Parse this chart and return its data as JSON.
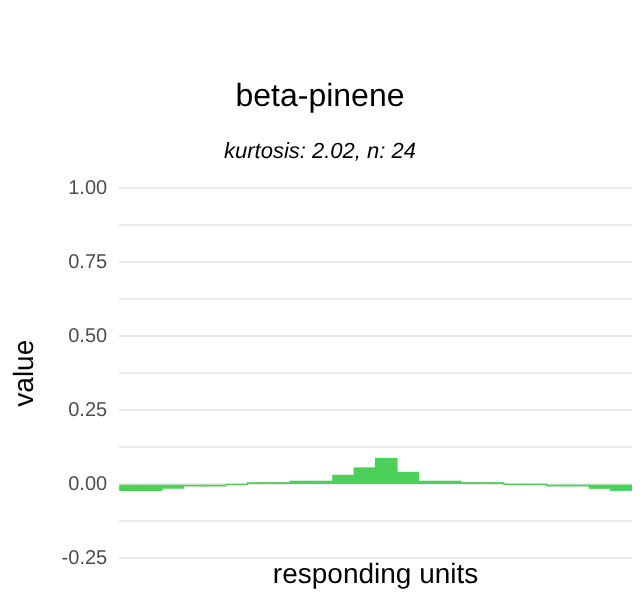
{
  "chart_data": {
    "type": "bar",
    "title": "beta-pinene",
    "subtitle": "kurtosis: 2.02, n: 24",
    "xlabel": "responding units",
    "ylabel": "value",
    "categories": [
      null,
      null,
      null,
      null,
      null,
      null,
      null,
      null,
      null,
      null,
      null,
      null,
      null,
      null,
      null,
      null,
      null,
      null,
      null,
      null,
      null,
      null,
      null,
      null
    ],
    "values": [
      -0.02,
      -0.02,
      -0.013,
      -0.005,
      -0.005,
      0,
      0.005,
      0.005,
      0.01,
      0.01,
      0.03,
      0.055,
      0.087,
      0.04,
      0.01,
      0.01,
      0.005,
      0.005,
      0,
      0,
      -0.005,
      -0.005,
      -0.013,
      -0.02
    ],
    "color": "#4cd05a",
    "ylim": [
      -0.25,
      1
    ],
    "yticks": [
      {
        "value": -0.25,
        "label": "-0.25"
      },
      {
        "value": -0.125,
        "label": null
      },
      {
        "value": 0,
        "label": "0.00"
      },
      {
        "value": 0.125,
        "label": null
      },
      {
        "value": 0.25,
        "label": "0.25"
      },
      {
        "value": 0.375,
        "label": null
      },
      {
        "value": 0.5,
        "label": "0.50"
      },
      {
        "value": 0.625,
        "label": null
      },
      {
        "value": 0.75,
        "label": "0.75"
      },
      {
        "value": 0.875,
        "label": null
      },
      {
        "value": 1,
        "label": "1.00"
      }
    ],
    "grid": true,
    "tick_labels": "y",
    "legend": false
  }
}
